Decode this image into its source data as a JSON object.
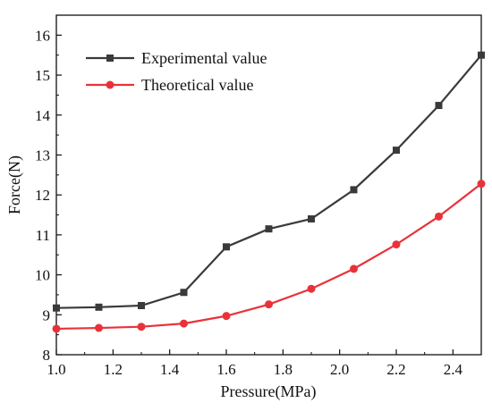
{
  "chart_data": {
    "type": "line",
    "xlabel": "Pressure(MPa)",
    "ylabel": "Force(N)",
    "xlim": [
      1.0,
      2.5
    ],
    "ylim": [
      8,
      16.5
    ],
    "xticks": [
      1.0,
      1.2,
      1.4,
      1.6,
      1.8,
      2.0,
      2.2,
      2.4
    ],
    "xtick_labels": [
      "1.0",
      "1.2",
      "1.4",
      "1.6",
      "1.8",
      "2.0",
      "2.2",
      "2.4"
    ],
    "yticks": [
      8,
      9,
      10,
      11,
      12,
      13,
      14,
      15,
      16
    ],
    "ytick_labels": [
      "8",
      "9",
      "10",
      "11",
      "12",
      "13",
      "14",
      "15",
      "16"
    ],
    "grid": false,
    "legend_position": "top-left",
    "x": [
      1.0,
      1.15,
      1.3,
      1.45,
      1.6,
      1.75,
      1.9,
      2.05,
      2.2,
      2.35,
      2.5
    ],
    "series": [
      {
        "name": "Experimental value",
        "color": "#3a3a3a",
        "marker": "square",
        "values": [
          9.17,
          9.19,
          9.23,
          9.56,
          10.7,
          11.15,
          11.4,
          12.13,
          13.12,
          14.24,
          15.5
        ]
      },
      {
        "name": "Theoretical value",
        "color": "#e8323a",
        "marker": "circle",
        "values": [
          8.65,
          8.67,
          8.7,
          8.78,
          8.97,
          9.26,
          9.65,
          10.15,
          10.76,
          11.46,
          12.28
        ]
      }
    ]
  }
}
